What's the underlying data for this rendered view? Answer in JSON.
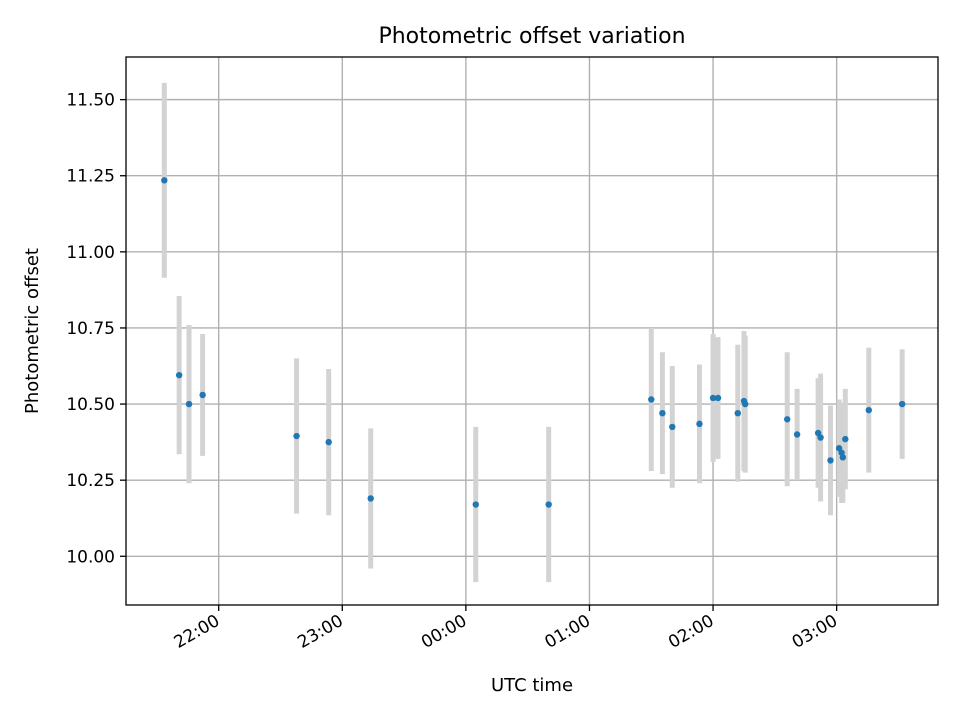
{
  "chart_data": {
    "type": "scatter",
    "title": "Photometric offset variation",
    "xlabel": "UTC time",
    "ylabel": "Photometric offset",
    "grid": true,
    "x_unit": "hours since 00:00 UTC",
    "xlim": [
      -2.75,
      3.82
    ],
    "ylim": [
      9.84,
      11.64
    ],
    "xticks": [
      {
        "value": -2.0,
        "label": "22:00"
      },
      {
        "value": -1.0,
        "label": "23:00"
      },
      {
        "value": 0.0,
        "label": "00:00"
      },
      {
        "value": 1.0,
        "label": "01:00"
      },
      {
        "value": 2.0,
        "label": "02:00"
      },
      {
        "value": 3.0,
        "label": "03:00"
      }
    ],
    "yticks": [
      {
        "value": 10.0,
        "label": "10.00"
      },
      {
        "value": 10.25,
        "label": "10.25"
      },
      {
        "value": 10.5,
        "label": "10.50"
      },
      {
        "value": 10.75,
        "label": "10.75"
      },
      {
        "value": 11.0,
        "label": "11.00"
      },
      {
        "value": 11.25,
        "label": "11.25"
      },
      {
        "value": 11.5,
        "label": "11.50"
      }
    ],
    "colors": {
      "point": "#1f77b4",
      "errorbar": "#d3d3d3",
      "grid": "#b0b0b0"
    },
    "points": [
      {
        "x": -2.44,
        "y": 11.235,
        "err": 0.32
      },
      {
        "x": -2.32,
        "y": 10.595,
        "err": 0.26
      },
      {
        "x": -2.24,
        "y": 10.5,
        "err": 0.26
      },
      {
        "x": -2.13,
        "y": 10.53,
        "err": 0.2
      },
      {
        "x": -1.37,
        "y": 10.395,
        "err": 0.255
      },
      {
        "x": -1.11,
        "y": 10.375,
        "err": 0.24
      },
      {
        "x": -0.77,
        "y": 10.19,
        "err": 0.23
      },
      {
        "x": 0.08,
        "y": 10.17,
        "err": 0.255
      },
      {
        "x": 0.67,
        "y": 10.17,
        "err": 0.255
      },
      {
        "x": 1.5,
        "y": 10.515,
        "err": 0.235
      },
      {
        "x": 1.59,
        "y": 10.47,
        "err": 0.2
      },
      {
        "x": 1.67,
        "y": 10.425,
        "err": 0.2
      },
      {
        "x": 1.89,
        "y": 10.435,
        "err": 0.195
      },
      {
        "x": 2.0,
        "y": 10.52,
        "err": 0.21
      },
      {
        "x": 2.04,
        "y": 10.52,
        "err": 0.2
      },
      {
        "x": 2.2,
        "y": 10.47,
        "err": 0.225
      },
      {
        "x": 2.25,
        "y": 10.51,
        "err": 0.23
      },
      {
        "x": 2.26,
        "y": 10.5,
        "err": 0.225
      },
      {
        "x": 2.6,
        "y": 10.45,
        "err": 0.22
      },
      {
        "x": 2.68,
        "y": 10.4,
        "err": 0.15
      },
      {
        "x": 2.85,
        "y": 10.405,
        "err": 0.18
      },
      {
        "x": 2.87,
        "y": 10.39,
        "err": 0.21
      },
      {
        "x": 2.95,
        "y": 10.315,
        "err": 0.18
      },
      {
        "x": 3.02,
        "y": 10.355,
        "err": 0.16
      },
      {
        "x": 3.04,
        "y": 10.34,
        "err": 0.165
      },
      {
        "x": 3.05,
        "y": 10.325,
        "err": 0.15
      },
      {
        "x": 3.07,
        "y": 10.385,
        "err": 0.165
      },
      {
        "x": 3.26,
        "y": 10.48,
        "err": 0.205
      },
      {
        "x": 3.53,
        "y": 10.5,
        "err": 0.18
      }
    ]
  }
}
